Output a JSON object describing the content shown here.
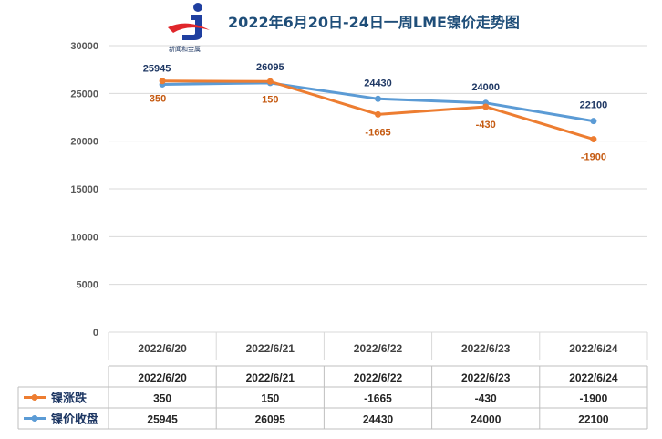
{
  "chart_data": {
    "type": "line",
    "title": "2022年6月20日-24日一周LME镍价走势图",
    "categories": [
      "2022/6/20",
      "2022/6/21",
      "2022/6/22",
      "2022/6/23",
      "2022/6/24"
    ],
    "ylim": [
      0,
      30000
    ],
    "yticks": [
      0,
      5000,
      10000,
      15000,
      20000,
      25000,
      30000
    ],
    "grid": true,
    "series": [
      {
        "name": "镍涨跌",
        "color": "#ED7D31",
        "labels": [
          350,
          150,
          -1665,
          -430,
          -1900
        ],
        "plot_values": [
          26300,
          26250,
          22800,
          23600,
          20200
        ]
      },
      {
        "name": "镍价收盘",
        "color": "#5B9BD5",
        "labels": [
          25945,
          26095,
          24430,
          24000,
          22100
        ],
        "plot_values": [
          25945,
          26095,
          24430,
          24000,
          22100
        ]
      }
    ],
    "table": {
      "header": [
        "2022/6/20",
        "2022/6/21",
        "2022/6/22",
        "2022/6/23",
        "2022/6/24"
      ],
      "rows": [
        {
          "name": "镍涨跌",
          "values": [
            "350",
            "150",
            "-1665",
            "-430",
            "-1900"
          ]
        },
        {
          "name": "镍价收盘",
          "values": [
            "25945",
            "26095",
            "24430",
            "24000",
            "22100"
          ]
        }
      ]
    }
  },
  "logo": {
    "text": "新闻和金属",
    "colors": {
      "blue": "#1F3FA0",
      "red": "#E0262B"
    }
  }
}
